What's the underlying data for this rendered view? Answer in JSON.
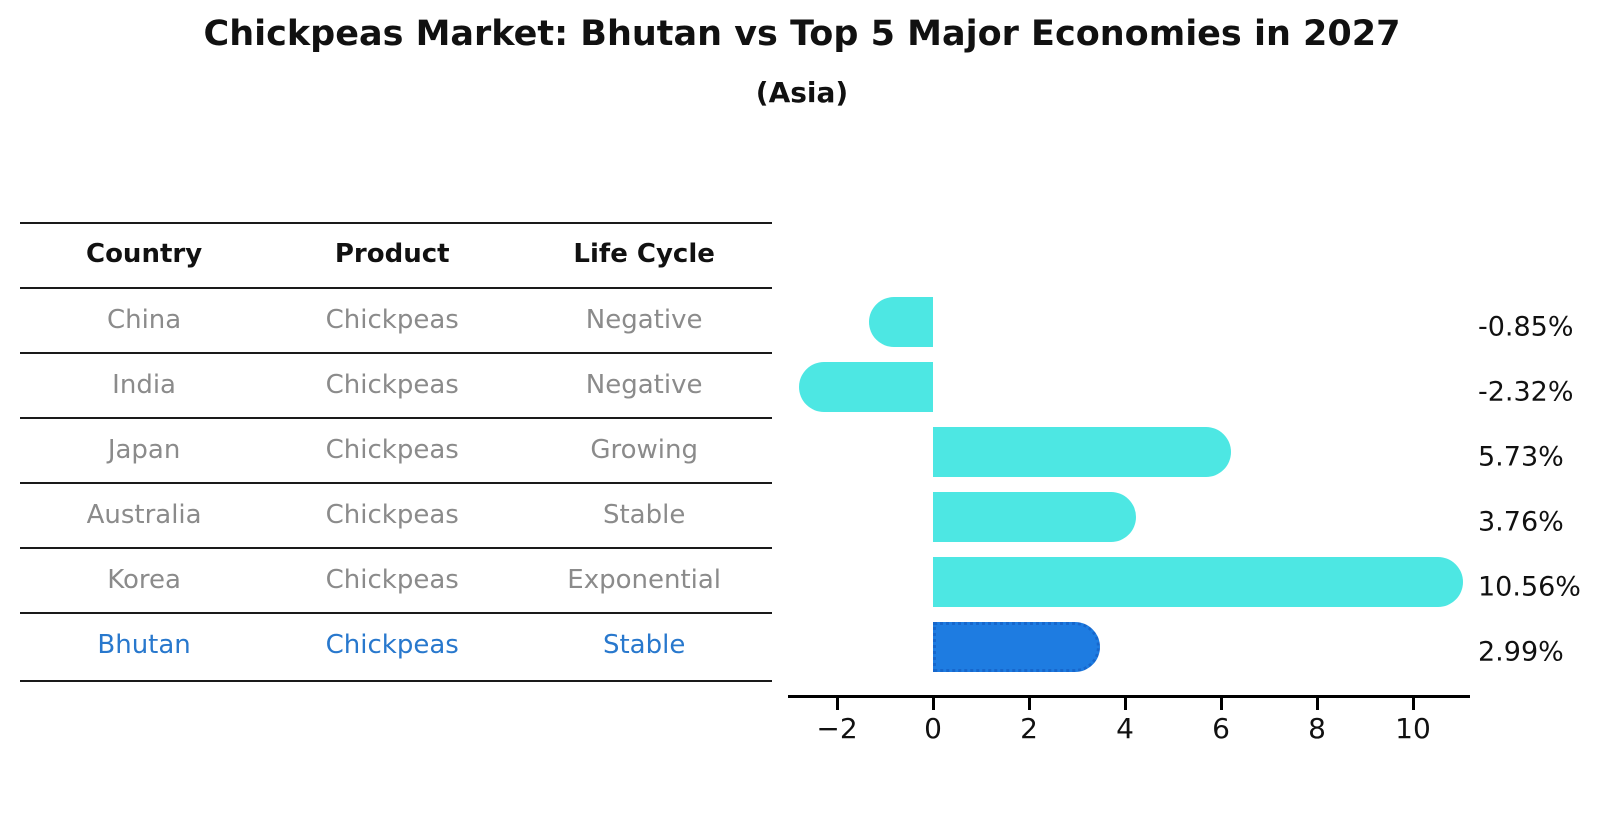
{
  "title": "Chickpeas Market: Bhutan vs Top 5 Major Economies in 2027",
  "subtitle": "(Asia)",
  "table": {
    "headers": [
      "Country",
      "Product",
      "Life Cycle"
    ],
    "rows": [
      {
        "country": "China",
        "product": "Chickpeas",
        "life_cycle": "Negative",
        "highlight": false
      },
      {
        "country": "India",
        "product": "Chickpeas",
        "life_cycle": "Negative",
        "highlight": false
      },
      {
        "country": "Japan",
        "product": "Chickpeas",
        "life_cycle": "Growing",
        "highlight": false
      },
      {
        "country": "Australia",
        "product": "Chickpeas",
        "life_cycle": "Stable",
        "highlight": false
      },
      {
        "country": "Korea",
        "product": "Chickpeas",
        "life_cycle": "Exponential",
        "highlight": false
      },
      {
        "country": "Bhutan",
        "product": "Chickpeas",
        "life_cycle": "Stable",
        "highlight": true
      }
    ]
  },
  "chart_data": {
    "type": "bar",
    "orientation": "horizontal",
    "title": "Chickpeas Market: Bhutan vs Top 5 Major Economies in 2027",
    "subtitle": "(Asia)",
    "categories": [
      "China",
      "India",
      "Japan",
      "Australia",
      "Korea",
      "Bhutan"
    ],
    "values": [
      -0.85,
      -2.32,
      5.73,
      3.76,
      10.56,
      2.99
    ],
    "value_labels": [
      "-0.85%",
      "-2.32%",
      "5.73%",
      "3.76%",
      "10.56%",
      "2.99%"
    ],
    "unit": "percent",
    "highlight_category": "Bhutan",
    "xlim": [
      -3.0,
      11.2
    ],
    "x_ticks": [
      -2,
      0,
      2,
      4,
      6,
      8,
      10
    ],
    "x_tick_labels": [
      "−2",
      "0",
      "2",
      "4",
      "6",
      "8",
      "10"
    ],
    "grid": false,
    "legend": false
  },
  "colors": {
    "bar": "#4de7e3",
    "highlight_bar": "#1e7ce1",
    "highlight_bar_edge": "#1767cc",
    "highlight_text": "#2878cd",
    "row_text": "#8b8b8b",
    "header_text": "#111111",
    "axis": "#000000"
  }
}
